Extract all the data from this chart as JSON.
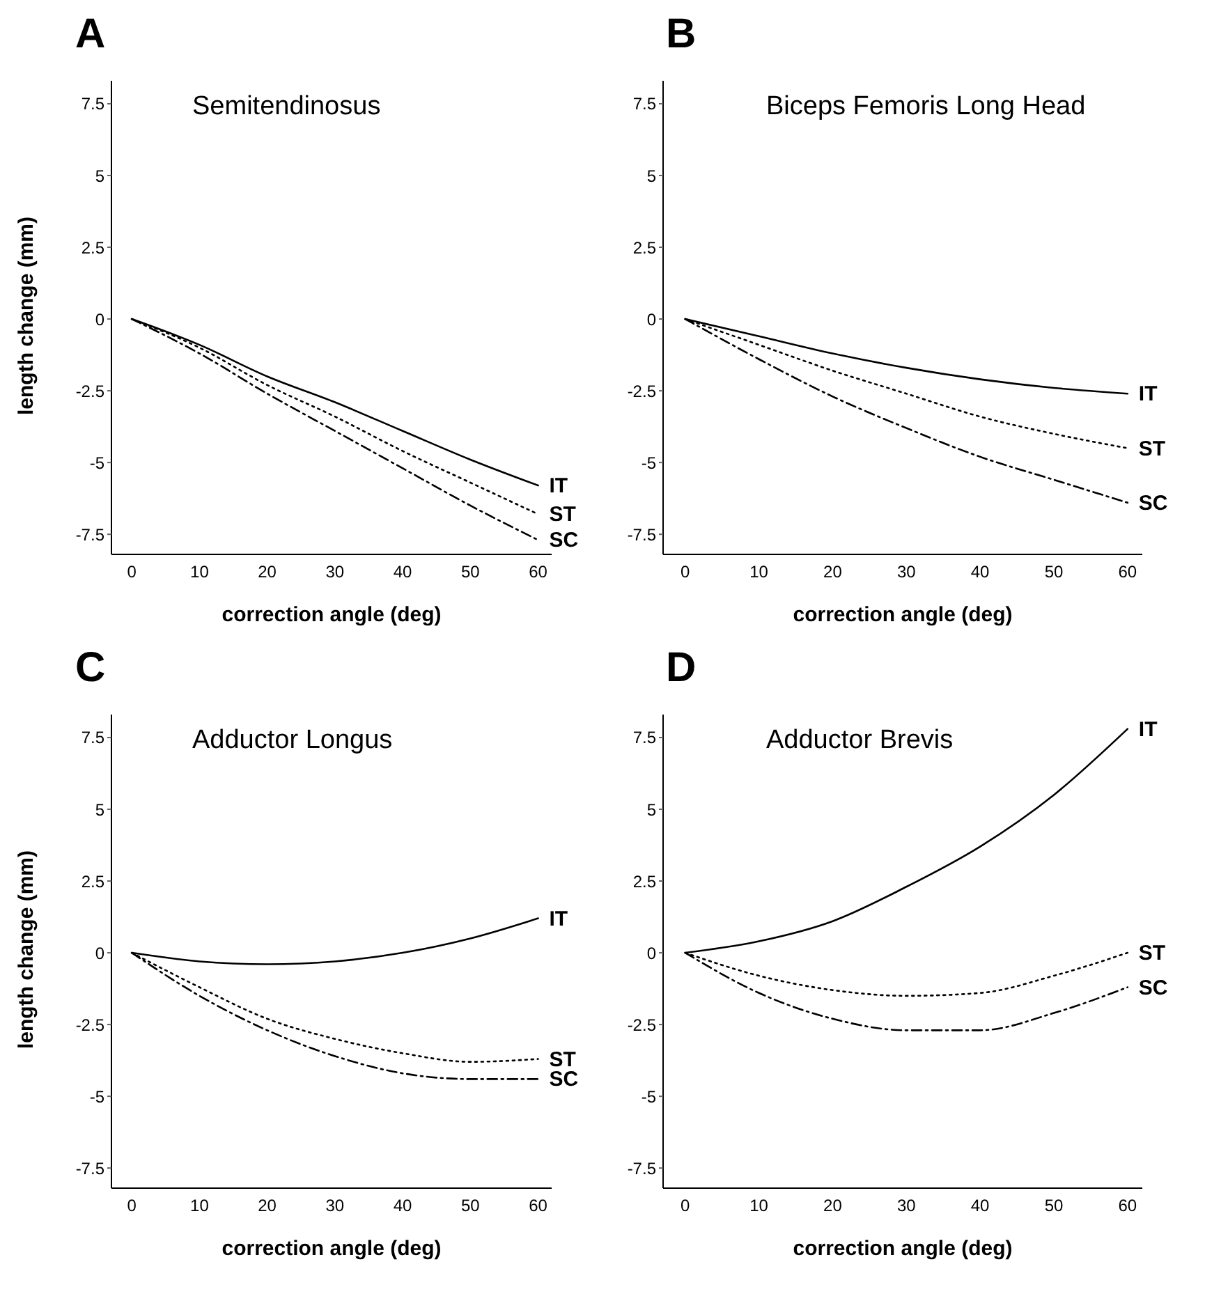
{
  "chart_data": [
    {
      "type": "line",
      "title": "A",
      "subtitle": "Semitendinosus",
      "xlabel": "correction angle (deg)",
      "ylabel": "length change (mm)",
      "x": [
        0,
        10,
        20,
        30,
        40,
        50,
        60
      ],
      "xlim": [
        -3,
        62
      ],
      "xticks": [
        0,
        10,
        20,
        30,
        40,
        50,
        60
      ],
      "ylim": [
        -8.2,
        8.3
      ],
      "yticks": [
        -7.5,
        -5,
        -2.5,
        0,
        2.5,
        5,
        7.5
      ],
      "grid": false,
      "legend": false,
      "marker": "none",
      "series": [
        {
          "name": "IT",
          "color": "#000000",
          "line_style": "solid",
          "values": [
            0,
            -0.9,
            -2.0,
            -2.9,
            -3.9,
            -4.9,
            -5.8
          ]
        },
        {
          "name": "ST",
          "color": "#000000",
          "line_style": "dotted",
          "values": [
            0,
            -1.0,
            -2.3,
            -3.4,
            -4.6,
            -5.7,
            -6.8
          ]
        },
        {
          "name": "SC",
          "color": "#000000",
          "line_style": "dashed",
          "values": [
            0,
            -1.2,
            -2.6,
            -3.9,
            -5.2,
            -6.5,
            -7.7
          ]
        }
      ]
    },
    {
      "type": "line",
      "title": "B",
      "subtitle": "Biceps Femoris Long Head",
      "xlabel": "correction angle (deg)",
      "x": [
        0,
        10,
        20,
        30,
        40,
        50,
        60
      ],
      "xlim": [
        -3,
        62
      ],
      "xticks": [
        0,
        10,
        20,
        30,
        40,
        50,
        60
      ],
      "ylim": [
        -8.2,
        8.3
      ],
      "yticks": [
        -7.5,
        -5,
        -2.5,
        0,
        2.5,
        5,
        7.5
      ],
      "grid": false,
      "legend": false,
      "marker": "none",
      "series": [
        {
          "name": "IT",
          "color": "#000000",
          "line_style": "solid",
          "values": [
            0,
            -0.6,
            -1.2,
            -1.7,
            -2.1,
            -2.4,
            -2.6
          ]
        },
        {
          "name": "ST",
          "color": "#000000",
          "line_style": "dotted",
          "values": [
            0,
            -0.9,
            -1.8,
            -2.6,
            -3.4,
            -4.0,
            -4.5
          ]
        },
        {
          "name": "SC",
          "color": "#000000",
          "line_style": "dashed",
          "values": [
            0,
            -1.4,
            -2.7,
            -3.8,
            -4.8,
            -5.6,
            -6.4
          ]
        }
      ]
    },
    {
      "type": "line",
      "title": "C",
      "subtitle": "Adductor Longus",
      "xlabel": "correction angle (deg)",
      "ylabel": "length change (mm)",
      "x": [
        0,
        10,
        20,
        30,
        40,
        50,
        60
      ],
      "xlim": [
        -3,
        62
      ],
      "xticks": [
        0,
        10,
        20,
        30,
        40,
        50,
        60
      ],
      "ylim": [
        -8.2,
        8.3
      ],
      "yticks": [
        -7.5,
        -5,
        -2.5,
        0,
        2.5,
        5,
        7.5
      ],
      "grid": false,
      "legend": false,
      "marker": "none",
      "series": [
        {
          "name": "IT",
          "color": "#000000",
          "line_style": "solid",
          "values": [
            0,
            -0.3,
            -0.4,
            -0.3,
            0,
            0.5,
            1.2
          ]
        },
        {
          "name": "ST",
          "color": "#000000",
          "line_style": "dotted",
          "values": [
            0,
            -1.2,
            -2.3,
            -3.0,
            -3.5,
            -3.8,
            -3.7
          ]
        },
        {
          "name": "SC",
          "color": "#000000",
          "line_style": "dashed",
          "values": [
            0,
            -1.5,
            -2.7,
            -3.6,
            -4.2,
            -4.4,
            -4.4
          ]
        }
      ]
    },
    {
      "type": "line",
      "title": "D",
      "subtitle": "Adductor Brevis",
      "xlabel": "correction angle (deg)",
      "x": [
        0,
        10,
        20,
        30,
        40,
        50,
        60
      ],
      "xlim": [
        -3,
        62
      ],
      "xticks": [
        0,
        10,
        20,
        30,
        40,
        50,
        60
      ],
      "ylim": [
        -8.2,
        8.3
      ],
      "yticks": [
        -7.5,
        -5,
        -2.5,
        0,
        2.5,
        5,
        7.5
      ],
      "grid": false,
      "legend": false,
      "marker": "none",
      "series": [
        {
          "name": "IT",
          "color": "#000000",
          "line_style": "solid",
          "values": [
            0,
            0.4,
            1.1,
            2.3,
            3.7,
            5.5,
            7.8
          ]
        },
        {
          "name": "ST",
          "color": "#000000",
          "line_style": "dotted",
          "values": [
            0,
            -0.8,
            -1.3,
            -1.5,
            -1.4,
            -0.8,
            0
          ]
        },
        {
          "name": "SC",
          "color": "#000000",
          "line_style": "dashed",
          "values": [
            0,
            -1.4,
            -2.3,
            -2.7,
            -2.7,
            -2.1,
            -1.2
          ]
        }
      ]
    }
  ]
}
